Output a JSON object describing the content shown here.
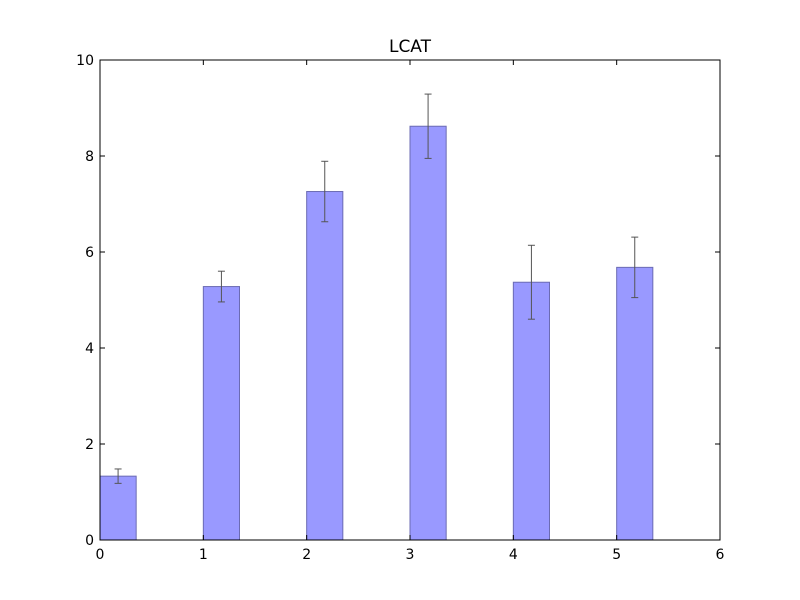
{
  "chart_data": {
    "type": "bar",
    "title": "LCAT",
    "xlabel": "",
    "ylabel": "",
    "xlim": [
      0,
      6
    ],
    "ylim": [
      0,
      10
    ],
    "x_ticks": [
      "0",
      "1",
      "2",
      "3",
      "4",
      "5",
      "6"
    ],
    "y_ticks": [
      "0",
      "2",
      "4",
      "6",
      "8",
      "10"
    ],
    "grid": false,
    "bar_color": "#9999ff",
    "bar_edge_color": "#6b6bb3",
    "error_color": "#555555",
    "bar_width": 0.35,
    "bars": [
      {
        "x": 0,
        "value": 1.33,
        "error": 0.15
      },
      {
        "x": 1,
        "value": 5.28,
        "error": 0.32
      },
      {
        "x": 2,
        "value": 7.26,
        "error": 0.63
      },
      {
        "x": 3,
        "value": 8.62,
        "error": 0.67
      },
      {
        "x": 4,
        "value": 5.37,
        "error": 0.77
      },
      {
        "x": 5,
        "value": 5.68,
        "error": 0.63
      }
    ]
  }
}
